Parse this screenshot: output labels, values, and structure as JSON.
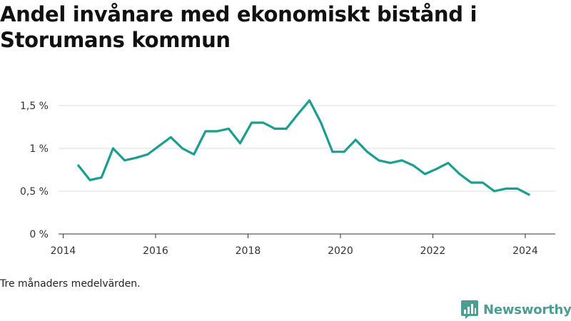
{
  "header": {
    "title": "Andel invånare med ekonomiskt bistånd i Storumans kommun"
  },
  "footer": {
    "note": "Tre månaders medelvärden.",
    "brand": "Newsworthy"
  },
  "colors": {
    "line": "#1a9e8f",
    "grid": "#dddddd",
    "brand": "#4a9e93"
  },
  "chart_data": {
    "type": "line",
    "title": "Andel invånare med ekonomiskt bistånd i Storumans kommun",
    "xlabel": "",
    "ylabel": "",
    "xlim": [
      2013.9,
      2024.65
    ],
    "ylim": [
      0,
      1.5
    ],
    "x_ticks": [
      2014,
      2016,
      2018,
      2020,
      2022,
      2024
    ],
    "x_tick_labels": [
      "2014",
      "2016",
      "2018",
      "2020",
      "2022",
      "2024"
    ],
    "y_ticks": [
      0,
      0.5,
      1,
      1.5
    ],
    "y_tick_labels": [
      "0 %",
      "0,5 %",
      "1 %",
      "1,5 %"
    ],
    "grid": true,
    "legend": "none",
    "series": [
      {
        "x": [
          2014.33,
          2014.58,
          2014.83,
          2015.08,
          2015.33,
          2015.58,
          2015.83,
          2016.08,
          2016.33,
          2016.58,
          2016.83,
          2017.08,
          2017.33,
          2017.58,
          2017.83,
          2018.08,
          2018.33,
          2018.58,
          2018.83,
          2019.08,
          2019.33,
          2019.58,
          2019.83,
          2020.08,
          2020.33,
          2020.58,
          2020.83,
          2021.08,
          2021.33,
          2021.58,
          2021.83,
          2022.08,
          2022.33,
          2022.58,
          2022.83,
          2023.08,
          2023.33,
          2023.58,
          2023.83,
          2024.08
        ],
        "y": [
          0.8,
          0.63,
          0.66,
          1.0,
          0.86,
          0.89,
          0.93,
          1.03,
          1.13,
          1.0,
          0.93,
          1.2,
          1.2,
          1.23,
          1.06,
          1.3,
          1.3,
          1.23,
          1.23,
          1.4,
          1.56,
          1.3,
          0.96,
          0.96,
          1.1,
          0.96,
          0.86,
          0.83,
          0.86,
          0.8,
          0.7,
          0.76,
          0.83,
          0.7,
          0.6,
          0.6,
          0.5,
          0.53,
          0.53,
          0.46
        ]
      }
    ]
  }
}
